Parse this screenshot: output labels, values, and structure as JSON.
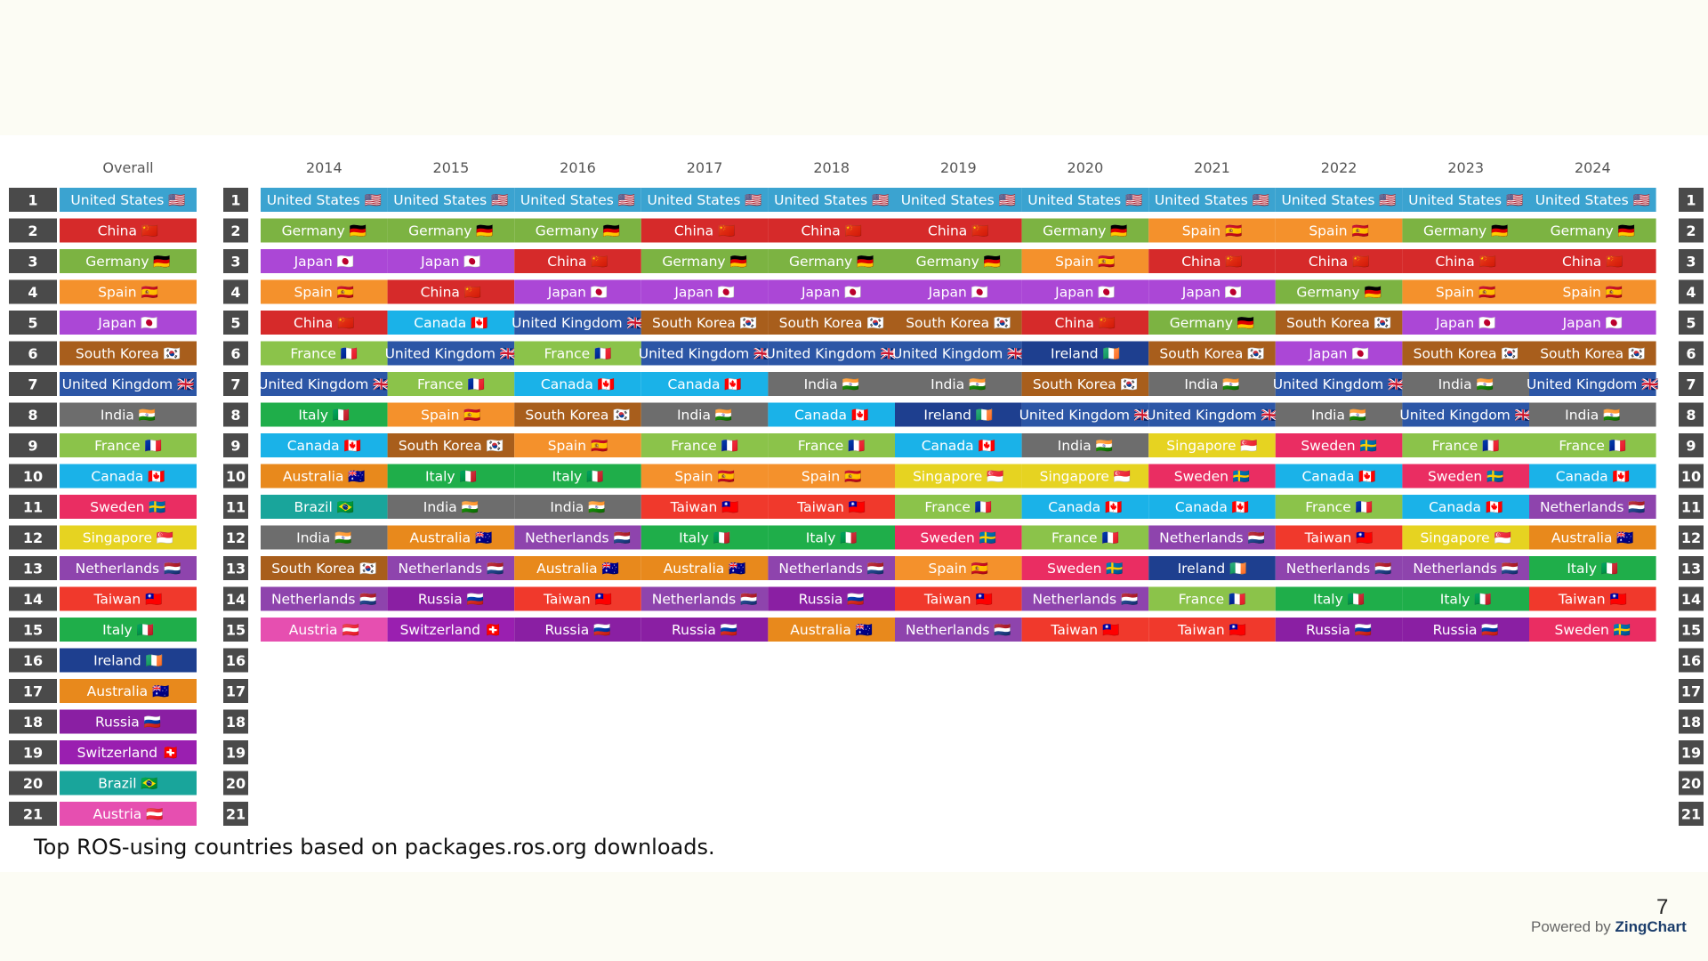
{
  "caption": "Top ROS-using countries based on packages.ros.org downloads.",
  "powered_by": {
    "prefix": "Powered by",
    "brand": "ZingChart"
  },
  "page_number": "7",
  "colors": {
    "rank_badge": "#4a4a4a",
    "background": "#fcfcf4",
    "panel": "#ffffff",
    "countries": {
      "United States": "#3ba3d0",
      "China": "#d62a2a",
      "Germany": "#7cb342",
      "Spain": "#f4912c",
      "Japan": "#ab47d6",
      "South Korea": "#a85e1c",
      "United Kingdom": "#2c56a6",
      "India": "#6d6d6d",
      "France": "#8bc34a",
      "Canada": "#1ab2e8",
      "Sweden": "#ea2d62",
      "Singapore": "#e6d321",
      "Netherlands": "#8e44ad",
      "Taiwan": "#f0392c",
      "Italy": "#1fae4a",
      "Ireland": "#1e3f8f",
      "Australia": "#e8891c",
      "Russia": "#8a1fa3",
      "Switzerland": "#9a1fb0",
      "Brazil": "#19a59b",
      "Austria": "#e64fb0"
    }
  },
  "flags": {
    "United States": "🇺🇸",
    "China": "🇨🇳",
    "Germany": "🇩🇪",
    "Spain": "🇪🇸",
    "Japan": "🇯🇵",
    "South Korea": "🇰🇷",
    "United Kingdom": "🇬🇧",
    "India": "🇮🇳",
    "France": "🇫🇷",
    "Canada": "🇨🇦",
    "Sweden": "🇸🇪",
    "Singapore": "🇸🇬",
    "Netherlands": "🇳🇱",
    "Taiwan": "🇹🇼",
    "Italy": "🇮🇹",
    "Ireland": "🇮🇪",
    "Australia": "🇦🇺",
    "Russia": "🇷🇺",
    "Switzerland": "🇨🇭",
    "Brazil": "🇧🇷",
    "Austria": "🇦🇹"
  },
  "chart_data": {
    "type": "table",
    "overall_header": "Overall",
    "overall": [
      "United States",
      "China",
      "Germany",
      "Spain",
      "Japan",
      "South Korea",
      "United Kingdom",
      "India",
      "France",
      "Canada",
      "Sweden",
      "Singapore",
      "Netherlands",
      "Taiwan",
      "Italy",
      "Ireland",
      "Australia",
      "Russia",
      "Switzerland",
      "Brazil",
      "Austria"
    ],
    "ranks": [
      1,
      2,
      3,
      4,
      5,
      6,
      7,
      8,
      9,
      10,
      11,
      12,
      13,
      14,
      15,
      16,
      17,
      18,
      19,
      20,
      21
    ],
    "years": [
      "2014",
      "2015",
      "2016",
      "2017",
      "2018",
      "2019",
      "2020",
      "2021",
      "2022",
      "2023",
      "2024"
    ],
    "rankings": {
      "2014": [
        "United States",
        "Germany",
        "Japan",
        "Spain",
        "China",
        "France",
        "United Kingdom",
        "Italy",
        "Canada",
        "Australia",
        "Brazil",
        "India",
        "South Korea",
        "Netherlands",
        "Austria"
      ],
      "2015": [
        "United States",
        "Germany",
        "Japan",
        "China",
        "Canada",
        "United Kingdom",
        "France",
        "Spain",
        "South Korea",
        "Italy",
        "India",
        "Australia",
        "Netherlands",
        "Russia",
        "Switzerland"
      ],
      "2016": [
        "United States",
        "Germany",
        "China",
        "Japan",
        "United Kingdom",
        "France",
        "Canada",
        "South Korea",
        "Spain",
        "Italy",
        "India",
        "Netherlands",
        "Australia",
        "Taiwan",
        "Russia"
      ],
      "2017": [
        "United States",
        "China",
        "Germany",
        "Japan",
        "South Korea",
        "United Kingdom",
        "Canada",
        "India",
        "France",
        "Spain",
        "Taiwan",
        "Italy",
        "Australia",
        "Netherlands",
        "Russia"
      ],
      "2018": [
        "United States",
        "China",
        "Germany",
        "Japan",
        "South Korea",
        "United Kingdom",
        "India",
        "Canada",
        "France",
        "Spain",
        "Taiwan",
        "Italy",
        "Netherlands",
        "Russia",
        "Australia"
      ],
      "2019": [
        "United States",
        "China",
        "Germany",
        "Japan",
        "South Korea",
        "United Kingdom",
        "India",
        "Ireland",
        "Canada",
        "Singapore",
        "France",
        "Sweden",
        "Spain",
        "Taiwan",
        "Netherlands"
      ],
      "2020": [
        "United States",
        "Germany",
        "Spain",
        "Japan",
        "China",
        "Ireland",
        "South Korea",
        "United Kingdom",
        "India",
        "Singapore",
        "Canada",
        "France",
        "Sweden",
        "Netherlands",
        "Taiwan"
      ],
      "2021": [
        "United States",
        "Spain",
        "China",
        "Japan",
        "Germany",
        "South Korea",
        "India",
        "United Kingdom",
        "Singapore",
        "Sweden",
        "Canada",
        "Netherlands",
        "Ireland",
        "France",
        "Taiwan"
      ],
      "2022": [
        "United States",
        "Spain",
        "China",
        "Germany",
        "South Korea",
        "Japan",
        "United Kingdom",
        "India",
        "Sweden",
        "Canada",
        "France",
        "Taiwan",
        "Netherlands",
        "Italy",
        "Russia"
      ],
      "2023": [
        "United States",
        "Germany",
        "China",
        "Spain",
        "Japan",
        "South Korea",
        "India",
        "United Kingdom",
        "France",
        "Sweden",
        "Canada",
        "Singapore",
        "Netherlands",
        "Italy",
        "Russia"
      ],
      "2024": [
        "United States",
        "Germany",
        "China",
        "Spain",
        "Japan",
        "South Korea",
        "United Kingdom",
        "India",
        "France",
        "Canada",
        "Netherlands",
        "Australia",
        "Italy",
        "Taiwan",
        "Sweden"
      ]
    }
  }
}
